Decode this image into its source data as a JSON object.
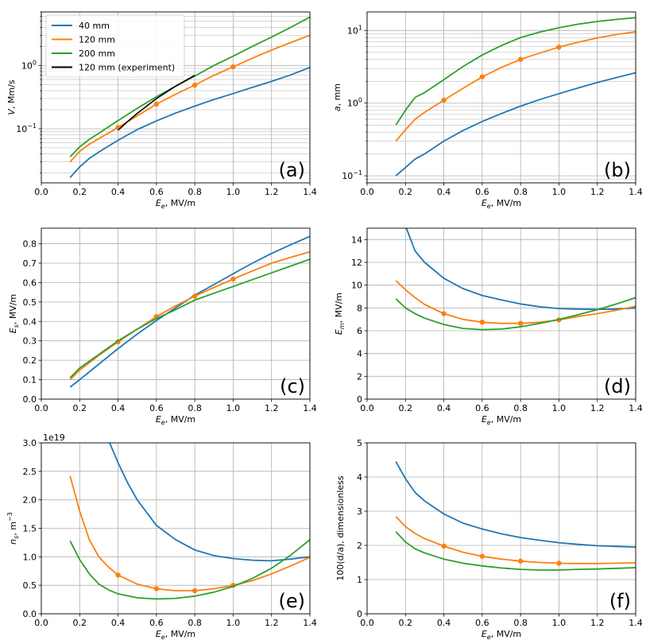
{
  "colors": {
    "blue": "#1f77b4",
    "orange": "#ff7f0e",
    "green": "#2ca02c",
    "black": "#000000",
    "grid": "#b0b0b0"
  },
  "chart_data": [
    {
      "id": "a",
      "type": "line",
      "panel_label": "(a)",
      "xlabel_main": "E",
      "xlabel_sub": "e",
      "xlabel_unit": ", MV/m",
      "ylabel_main": "V",
      "ylabel_sub": "",
      "ylabel_unit": ", Mm/s",
      "yscale": "log",
      "xlim": [
        0,
        1.4
      ],
      "ylim": [
        0.014,
        7
      ],
      "xticks": [
        "0.0",
        "0.2",
        "0.4",
        "0.6",
        "0.8",
        "1.0",
        "1.2",
        "1.4"
      ],
      "yticks": [
        {
          "v": 0.1,
          "base": "10",
          "exp": "−1"
        },
        {
          "v": 1,
          "base": "10",
          "exp": "0"
        }
      ],
      "legend": [
        {
          "label": "40 mm",
          "color": "blue"
        },
        {
          "label": "120 mm",
          "color": "orange"
        },
        {
          "label": "200 mm",
          "color": "green"
        },
        {
          "label": "120 mm (experiment)",
          "color": "black"
        }
      ],
      "series": [
        {
          "name": "40 mm",
          "color": "blue",
          "x": [
            0.15,
            0.2,
            0.25,
            0.3,
            0.4,
            0.5,
            0.6,
            0.7,
            0.8,
            0.9,
            1.0,
            1.1,
            1.2,
            1.3,
            1.4
          ],
          "y": [
            0.017,
            0.025,
            0.034,
            0.043,
            0.066,
            0.097,
            0.133,
            0.177,
            0.228,
            0.29,
            0.36,
            0.45,
            0.56,
            0.71,
            0.93
          ]
        },
        {
          "name": "120 mm",
          "color": "orange",
          "x": [
            0.15,
            0.2,
            0.25,
            0.3,
            0.4,
            0.5,
            0.6,
            0.7,
            0.8,
            0.9,
            1.0,
            1.1,
            1.2,
            1.3,
            1.4
          ],
          "y": [
            0.03,
            0.044,
            0.057,
            0.07,
            0.105,
            0.16,
            0.245,
            0.35,
            0.49,
            0.7,
            0.95,
            1.3,
            1.75,
            2.3,
            3.0
          ],
          "markers": [
            0.4,
            0.6,
            0.8,
            1.0
          ]
        },
        {
          "name": "200 mm",
          "color": "green",
          "x": [
            0.15,
            0.2,
            0.25,
            0.3,
            0.4,
            0.5,
            0.6,
            0.7,
            0.8,
            0.9,
            1.0,
            1.1,
            1.2,
            1.3,
            1.4
          ],
          "y": [
            0.036,
            0.052,
            0.068,
            0.085,
            0.135,
            0.21,
            0.32,
            0.47,
            0.68,
            1.0,
            1.4,
            2.0,
            2.8,
            4.0,
            5.8
          ]
        },
        {
          "name": "120 mm (experiment)",
          "color": "black",
          "x": [
            0.4,
            0.45,
            0.5,
            0.6,
            0.7,
            0.8
          ],
          "y": [
            0.095,
            0.13,
            0.175,
            0.3,
            0.47,
            0.7
          ]
        }
      ]
    },
    {
      "id": "b",
      "type": "line",
      "panel_label": "(b)",
      "xlabel_main": "E",
      "xlabel_sub": "e",
      "xlabel_unit": ", MV/m",
      "ylabel_main": "a",
      "ylabel_sub": "",
      "ylabel_unit": ", mm",
      "yscale": "log",
      "xlim": [
        0,
        1.4
      ],
      "ylim": [
        0.08,
        18
      ],
      "xticks": [
        "0.0",
        "0.2",
        "0.4",
        "0.6",
        "0.8",
        "1.0",
        "1.2",
        "1.4"
      ],
      "yticks": [
        {
          "v": 0.1,
          "base": "10",
          "exp": "−1"
        },
        {
          "v": 1,
          "base": "10",
          "exp": "0"
        },
        {
          "v": 10,
          "base": "10",
          "exp": "1"
        }
      ],
      "series": [
        {
          "name": "40 mm",
          "color": "blue",
          "x": [
            0.15,
            0.2,
            0.25,
            0.3,
            0.4,
            0.5,
            0.6,
            0.7,
            0.8,
            0.9,
            1.0,
            1.1,
            1.2,
            1.3,
            1.4
          ],
          "y": [
            0.1,
            0.13,
            0.17,
            0.2,
            0.3,
            0.42,
            0.56,
            0.72,
            0.91,
            1.12,
            1.35,
            1.62,
            1.92,
            2.25,
            2.62
          ]
        },
        {
          "name": "120 mm",
          "color": "orange",
          "x": [
            0.15,
            0.2,
            0.25,
            0.3,
            0.4,
            0.5,
            0.6,
            0.7,
            0.8,
            0.9,
            1.0,
            1.1,
            1.2,
            1.3,
            1.4
          ],
          "y": [
            0.3,
            0.43,
            0.6,
            0.75,
            1.1,
            1.6,
            2.3,
            3.1,
            4.0,
            4.9,
            5.9,
            6.9,
            7.9,
            8.8,
            9.6
          ],
          "markers": [
            0.4,
            0.6,
            0.8,
            1.0
          ]
        },
        {
          "name": "200 mm",
          "color": "green",
          "x": [
            0.15,
            0.2,
            0.25,
            0.3,
            0.4,
            0.5,
            0.6,
            0.7,
            0.8,
            0.9,
            1.0,
            1.1,
            1.2,
            1.3,
            1.4
          ],
          "y": [
            0.5,
            0.8,
            1.2,
            1.4,
            2.1,
            3.2,
            4.6,
            6.2,
            8.0,
            9.5,
            10.9,
            12.2,
            13.3,
            14.2,
            15.0
          ]
        }
      ]
    },
    {
      "id": "c",
      "type": "line",
      "panel_label": "(c)",
      "xlabel_main": "E",
      "xlabel_sub": "e",
      "xlabel_unit": ", MV/m",
      "ylabel_main": "E",
      "ylabel_sub": "s",
      "ylabel_unit": ", MV/m",
      "yscale": "linear",
      "xlim": [
        0,
        1.4
      ],
      "ylim": [
        0,
        0.88
      ],
      "xticks": [
        "0.0",
        "0.2",
        "0.4",
        "0.6",
        "0.8",
        "1.0",
        "1.2",
        "1.4"
      ],
      "yticks": [
        "0.0",
        "0.1",
        "0.2",
        "0.3",
        "0.4",
        "0.5",
        "0.6",
        "0.7",
        "0.8"
      ],
      "series": [
        {
          "name": "40 mm",
          "color": "blue",
          "x": [
            0.15,
            0.2,
            0.3,
            0.4,
            0.5,
            0.6,
            0.7,
            0.8,
            0.9,
            1.0,
            1.1,
            1.2,
            1.3,
            1.4
          ],
          "y": [
            0.062,
            0.1,
            0.18,
            0.26,
            0.335,
            0.405,
            0.47,
            0.535,
            0.59,
            0.645,
            0.7,
            0.75,
            0.795,
            0.838
          ]
        },
        {
          "name": "120 mm",
          "color": "orange",
          "x": [
            0.15,
            0.2,
            0.3,
            0.4,
            0.5,
            0.6,
            0.7,
            0.8,
            0.9,
            1.0,
            1.1,
            1.2,
            1.3,
            1.4
          ],
          "y": [
            0.1,
            0.15,
            0.225,
            0.295,
            0.36,
            0.425,
            0.48,
            0.53,
            0.575,
            0.618,
            0.66,
            0.7,
            0.73,
            0.758
          ],
          "markers": [
            0.4,
            0.6,
            0.8,
            1.0
          ]
        },
        {
          "name": "200 mm",
          "color": "green",
          "x": [
            0.15,
            0.2,
            0.3,
            0.4,
            0.5,
            0.6,
            0.7,
            0.8,
            0.9,
            1.0,
            1.1,
            1.2,
            1.3,
            1.4
          ],
          "y": [
            0.11,
            0.16,
            0.23,
            0.3,
            0.36,
            0.415,
            0.46,
            0.51,
            0.545,
            0.58,
            0.615,
            0.65,
            0.685,
            0.72
          ]
        }
      ]
    },
    {
      "id": "d",
      "type": "line",
      "panel_label": "(d)",
      "xlabel_main": "E",
      "xlabel_sub": "e",
      "xlabel_unit": ", MV/m",
      "ylabel_main": "E",
      "ylabel_sub": "m",
      "ylabel_unit": ", MV/m",
      "yscale": "linear",
      "xlim": [
        0,
        1.4
      ],
      "ylim": [
        0,
        15
      ],
      "xticks": [
        "0.0",
        "0.2",
        "0.4",
        "0.6",
        "0.8",
        "1.0",
        "1.2",
        "1.4"
      ],
      "yticks": [
        "0",
        "2",
        "4",
        "6",
        "8",
        "10",
        "12",
        "14"
      ],
      "series": [
        {
          "name": "40 mm",
          "color": "blue",
          "x": [
            0.2,
            0.25,
            0.3,
            0.4,
            0.5,
            0.6,
            0.7,
            0.8,
            0.9,
            1.0,
            1.1,
            1.2,
            1.3,
            1.4
          ],
          "y": [
            15.2,
            13.0,
            12.0,
            10.6,
            9.7,
            9.1,
            8.7,
            8.35,
            8.1,
            7.95,
            7.9,
            7.88,
            7.9,
            8.0
          ]
        },
        {
          "name": "120 mm",
          "color": "orange",
          "x": [
            0.15,
            0.2,
            0.25,
            0.3,
            0.4,
            0.5,
            0.6,
            0.7,
            0.8,
            0.9,
            1.0,
            1.1,
            1.2,
            1.3,
            1.4
          ],
          "y": [
            10.4,
            9.6,
            8.9,
            8.3,
            7.5,
            7.0,
            6.75,
            6.65,
            6.65,
            6.75,
            6.95,
            7.25,
            7.5,
            7.8,
            8.15
          ],
          "markers": [
            0.4,
            0.6,
            0.8,
            1.0
          ]
        },
        {
          "name": "200 mm",
          "color": "green",
          "x": [
            0.15,
            0.2,
            0.25,
            0.3,
            0.4,
            0.5,
            0.6,
            0.7,
            0.8,
            0.9,
            1.0,
            1.1,
            1.2,
            1.3,
            1.4
          ],
          "y": [
            8.8,
            8.0,
            7.5,
            7.1,
            6.55,
            6.2,
            6.1,
            6.15,
            6.35,
            6.65,
            7.0,
            7.4,
            7.85,
            8.35,
            8.9
          ]
        }
      ]
    },
    {
      "id": "e",
      "type": "line",
      "panel_label": "(e)",
      "xlabel_main": "E",
      "xlabel_sub": "e",
      "xlabel_unit": ", MV/m",
      "ylabel_main": "n",
      "ylabel_sub": "s",
      "ylabel_unit": ", m",
      "ylabel_sup": "−3",
      "offset_text": "1e19",
      "yscale": "linear",
      "xlim": [
        0,
        1.4
      ],
      "ylim": [
        0,
        3.0
      ],
      "xticks": [
        "0.0",
        "0.2",
        "0.4",
        "0.6",
        "0.8",
        "1.0",
        "1.2",
        "1.4"
      ],
      "yticks": [
        "0.0",
        "0.5",
        "1.0",
        "1.5",
        "2.0",
        "2.5",
        "3.0"
      ],
      "series": [
        {
          "name": "40 mm",
          "color": "blue",
          "x": [
            0.35,
            0.4,
            0.45,
            0.5,
            0.6,
            0.7,
            0.8,
            0.9,
            1.0,
            1.1,
            1.2,
            1.3,
            1.4
          ],
          "y": [
            3.05,
            2.65,
            2.3,
            2.0,
            1.55,
            1.3,
            1.12,
            1.02,
            0.97,
            0.94,
            0.93,
            0.96,
            1.0
          ]
        },
        {
          "name": "120 mm",
          "color": "orange",
          "x": [
            0.15,
            0.2,
            0.25,
            0.3,
            0.35,
            0.4,
            0.5,
            0.6,
            0.7,
            0.8,
            0.9,
            1.0,
            1.1,
            1.2,
            1.3,
            1.4
          ],
          "y": [
            2.42,
            1.8,
            1.3,
            1.0,
            0.82,
            0.68,
            0.52,
            0.44,
            0.405,
            0.405,
            0.44,
            0.5,
            0.58,
            0.7,
            0.84,
            0.99
          ],
          "markers": [
            0.4,
            0.6,
            0.8,
            1.0
          ]
        },
        {
          "name": "200 mm",
          "color": "green",
          "x": [
            0.15,
            0.2,
            0.25,
            0.3,
            0.35,
            0.4,
            0.5,
            0.6,
            0.7,
            0.8,
            0.9,
            1.0,
            1.1,
            1.2,
            1.3,
            1.4
          ],
          "y": [
            1.28,
            0.95,
            0.7,
            0.52,
            0.42,
            0.35,
            0.28,
            0.26,
            0.27,
            0.31,
            0.38,
            0.48,
            0.62,
            0.8,
            1.03,
            1.3
          ]
        }
      ]
    },
    {
      "id": "f",
      "type": "line",
      "panel_label": "(f)",
      "xlabel_main": "E",
      "xlabel_sub": "e",
      "xlabel_unit": ", MV/m",
      "ylabel_text": "100(d/a), dimensionless",
      "yscale": "linear",
      "xlim": [
        0,
        1.4
      ],
      "ylim": [
        0,
        5
      ],
      "xticks": [
        "0.0",
        "0.2",
        "0.4",
        "0.6",
        "0.8",
        "1.0",
        "1.2",
        "1.4"
      ],
      "yticks": [
        "0",
        "1",
        "2",
        "3",
        "4",
        "5"
      ],
      "series": [
        {
          "name": "40 mm",
          "color": "blue",
          "x": [
            0.15,
            0.2,
            0.25,
            0.3,
            0.4,
            0.5,
            0.6,
            0.7,
            0.8,
            0.9,
            1.0,
            1.1,
            1.2,
            1.3,
            1.4
          ],
          "y": [
            4.45,
            3.95,
            3.55,
            3.3,
            2.92,
            2.65,
            2.48,
            2.34,
            2.23,
            2.15,
            2.08,
            2.03,
            1.99,
            1.97,
            1.95
          ]
        },
        {
          "name": "120 mm",
          "color": "orange",
          "x": [
            0.15,
            0.2,
            0.25,
            0.3,
            0.4,
            0.5,
            0.6,
            0.7,
            0.8,
            0.9,
            1.0,
            1.1,
            1.2,
            1.3,
            1.4
          ],
          "y": [
            2.85,
            2.55,
            2.35,
            2.2,
            1.98,
            1.8,
            1.68,
            1.6,
            1.54,
            1.5,
            1.48,
            1.47,
            1.47,
            1.48,
            1.49
          ],
          "markers": [
            0.4,
            0.6,
            0.8,
            1.0
          ]
        },
        {
          "name": "200 mm",
          "color": "green",
          "x": [
            0.15,
            0.2,
            0.25,
            0.3,
            0.4,
            0.5,
            0.6,
            0.7,
            0.8,
            0.9,
            1.0,
            1.1,
            1.2,
            1.3,
            1.4
          ],
          "y": [
            2.4,
            2.1,
            1.9,
            1.78,
            1.6,
            1.48,
            1.4,
            1.34,
            1.3,
            1.28,
            1.28,
            1.3,
            1.31,
            1.33,
            1.35
          ]
        }
      ]
    }
  ]
}
